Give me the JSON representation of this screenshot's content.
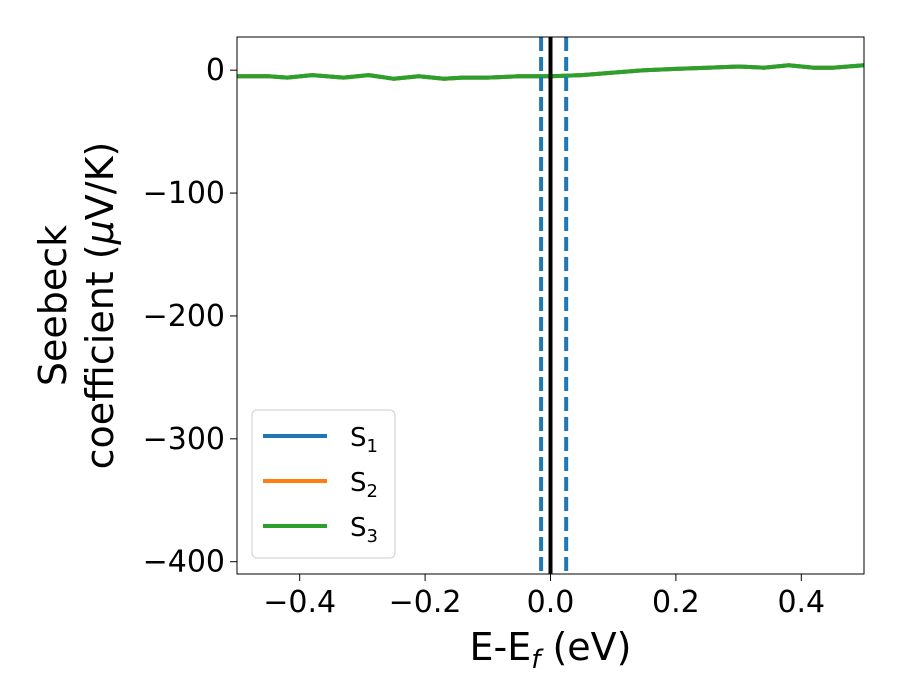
{
  "chart_data": {
    "type": "line",
    "xlabel": {
      "main": "E-E",
      "sub": "f",
      "tail": " (eV)"
    },
    "ylabel": {
      "line1": "Seebeck",
      "line2_pre": "coefficient  (",
      "mu": "μ",
      "line2_post": "V/K)"
    },
    "xlim": [
      -0.5,
      0.5
    ],
    "ylim": [
      -410,
      27
    ],
    "xticks": [
      -0.4,
      -0.2,
      0.0,
      0.2,
      0.4
    ],
    "xtick_labels": [
      "−0.4",
      "−0.2",
      "0.0",
      "0.2",
      "0.4"
    ],
    "yticks": [
      0,
      -100,
      -200,
      -300,
      -400
    ],
    "ytick_labels": [
      "0",
      "−100",
      "−200",
      "−300",
      "−400"
    ],
    "legend_position": "lower-left",
    "vertical_lines": [
      {
        "x": 0.0,
        "style": "solid",
        "color": "#000000"
      },
      {
        "x": -0.015,
        "style": "dashed",
        "color": "#1f77b4"
      },
      {
        "x": 0.025,
        "style": "dashed",
        "color": "#1f77b4"
      }
    ],
    "x": [
      -0.5,
      -0.45,
      -0.42,
      -0.38,
      -0.33,
      -0.29,
      -0.25,
      -0.21,
      -0.17,
      -0.14,
      -0.1,
      -0.05,
      0.0,
      0.05,
      0.1,
      0.15,
      0.2,
      0.25,
      0.3,
      0.34,
      0.38,
      0.42,
      0.45,
      0.5
    ],
    "series": [
      {
        "name": "S",
        "sub": "1",
        "color": "#1f77b4",
        "values": [
          -5,
          -5,
          -6,
          -4,
          -6,
          -4,
          -7,
          -5,
          -7,
          -6,
          -6,
          -5,
          -5,
          -4,
          -2,
          0,
          1,
          2,
          3,
          2,
          4,
          2,
          2,
          4
        ]
      },
      {
        "name": "S",
        "sub": "2",
        "color": "#ff7f0e",
        "values": [
          -5,
          -5,
          -6,
          -4,
          -6,
          -4,
          -7,
          -5,
          -7,
          -6,
          -6,
          -5,
          -5,
          -4,
          -2,
          0,
          1,
          2,
          3,
          2,
          4,
          2,
          2,
          4
        ]
      },
      {
        "name": "S",
        "sub": "3",
        "color": "#2ca02c",
        "values": [
          -5,
          -5,
          -6,
          -4,
          -6,
          -4,
          -7,
          -5,
          -7,
          -6,
          -6,
          -5,
          -5,
          -4,
          -2,
          0,
          1,
          2,
          3,
          2,
          4,
          2,
          2,
          4
        ]
      }
    ]
  }
}
